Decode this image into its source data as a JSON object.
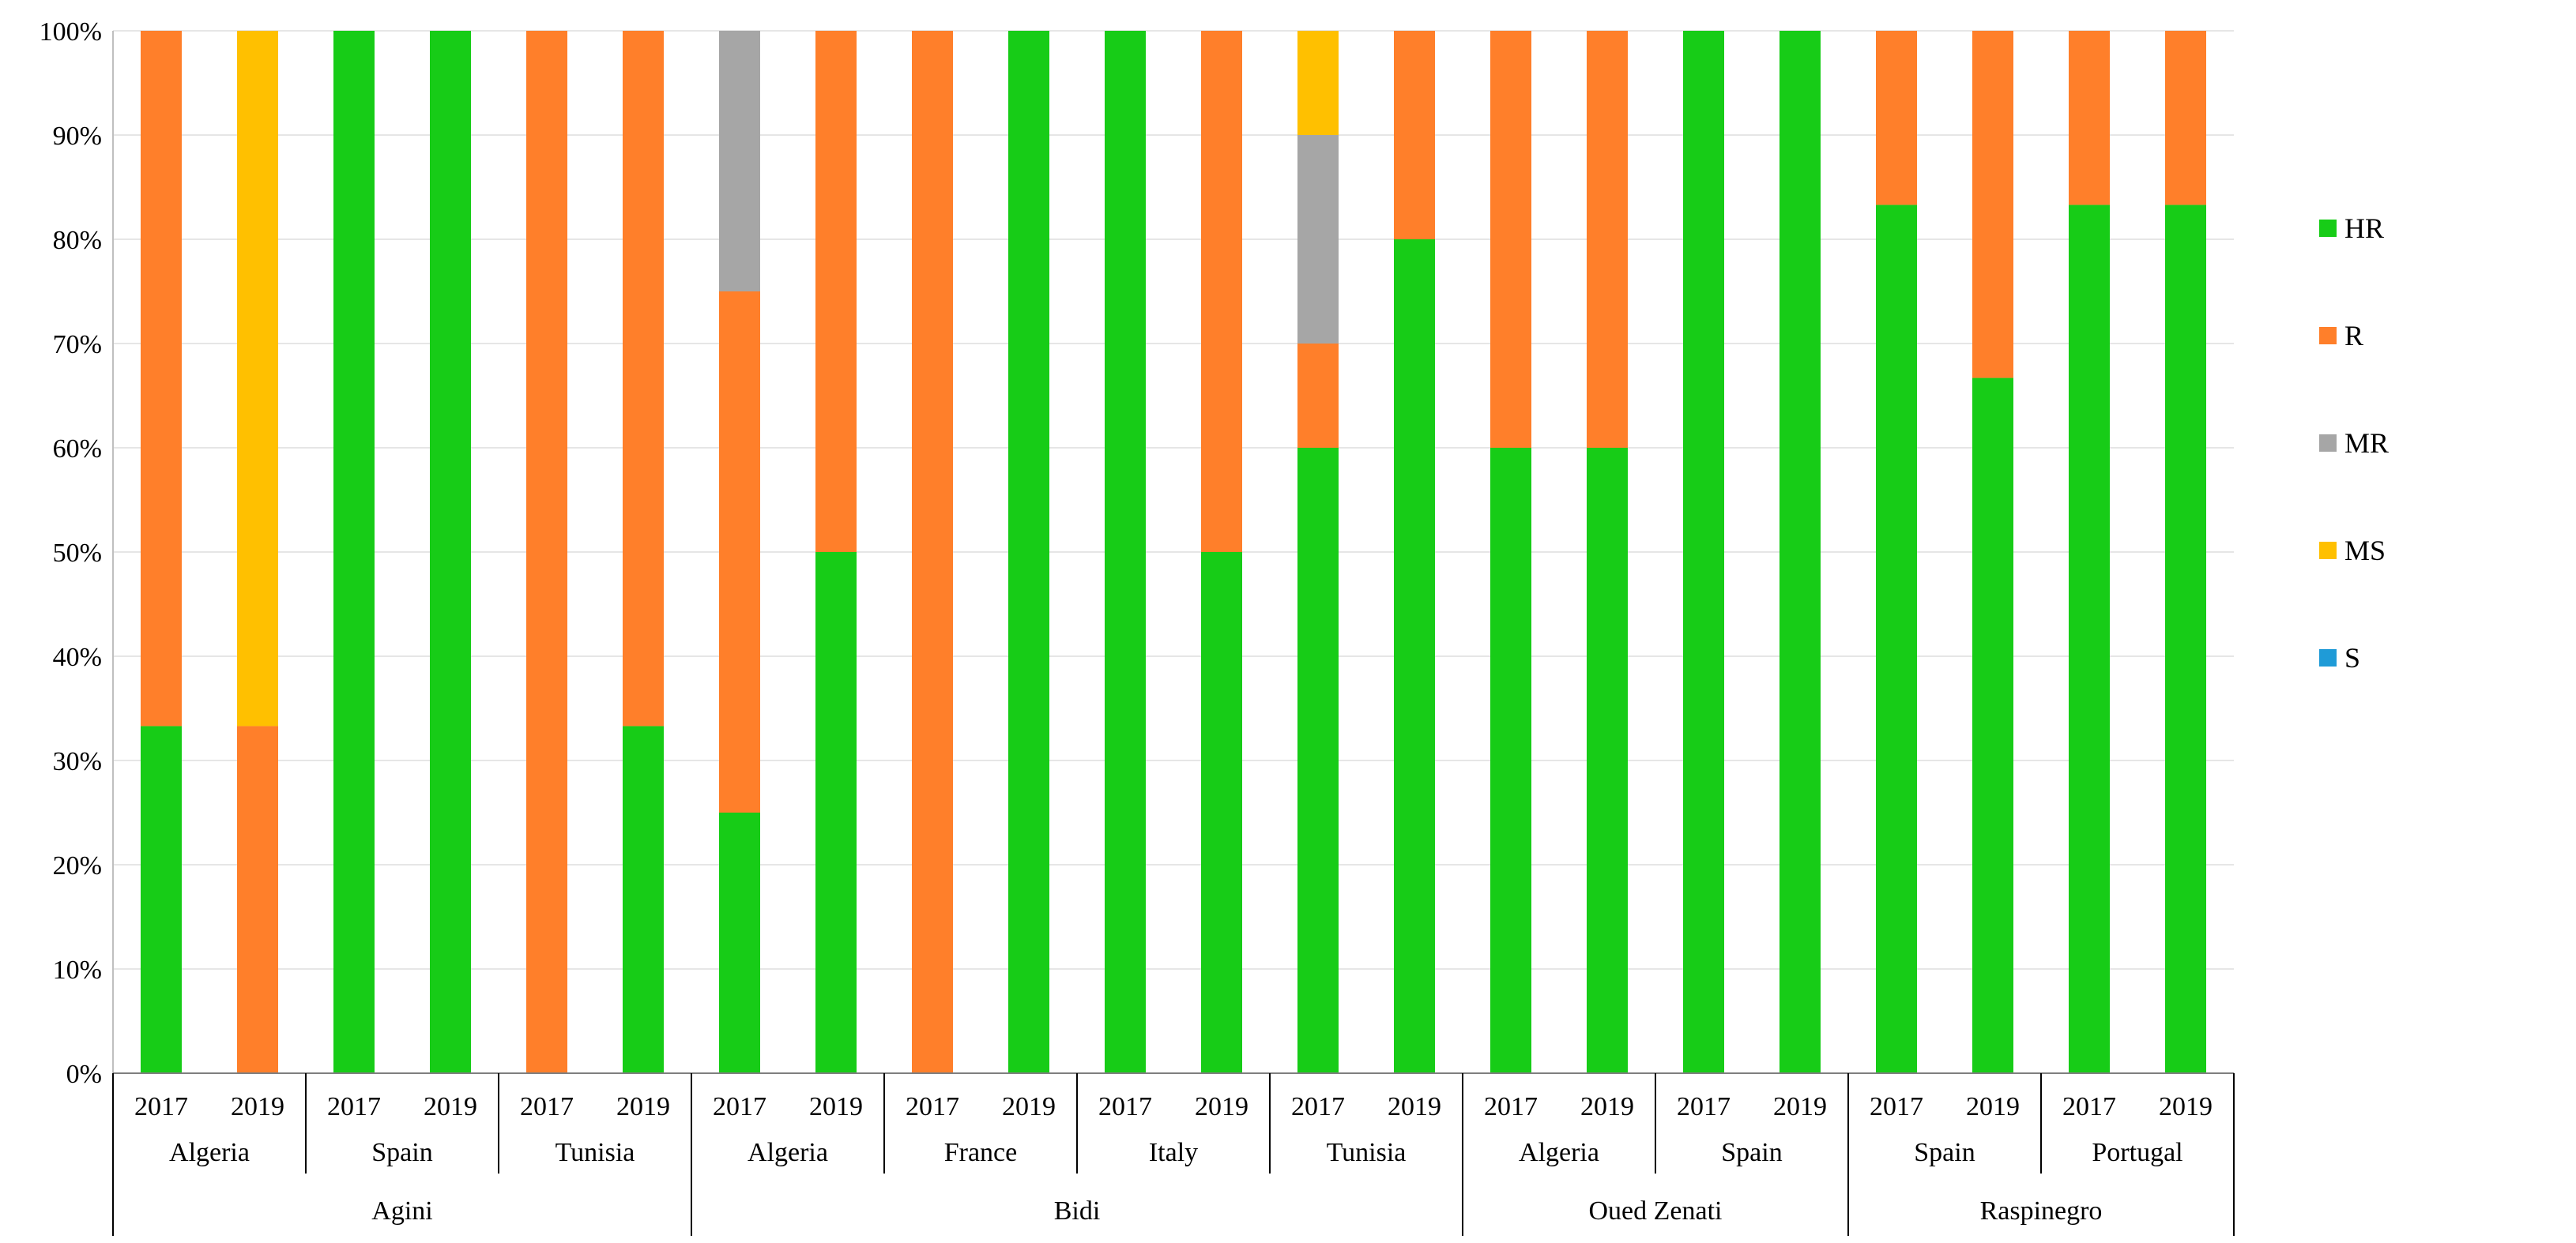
{
  "chart_data": {
    "type": "bar",
    "stacked": true,
    "percent": true,
    "title": "",
    "xlabel": "",
    "ylabel": "",
    "ylim": [
      0,
      100
    ],
    "yticks": [
      "0%",
      "10%",
      "20%",
      "30%",
      "40%",
      "50%",
      "60%",
      "70%",
      "80%",
      "90%",
      "100%"
    ],
    "grid": true,
    "legend_position": "right",
    "colors": {
      "HR": "#17cc17",
      "R": "#ff7f2a",
      "MR": "#a6a6a6",
      "MS": "#ffc000",
      "S": "#1f9bd7"
    },
    "legend": [
      "HR",
      "R",
      "MR",
      "MS",
      "S"
    ],
    "groups": [
      {
        "name": "Agini",
        "countries": [
          {
            "name": "Algeria",
            "years": [
              {
                "year": "2017",
                "HR": 33.3,
                "R": 66.7,
                "MR": 0,
                "MS": 0,
                "S": 0
              },
              {
                "year": "2019",
                "HR": 0,
                "R": 33.3,
                "MR": 0,
                "MS": 66.7,
                "S": 0
              }
            ]
          },
          {
            "name": "Spain",
            "years": [
              {
                "year": "2017",
                "HR": 100,
                "R": 0,
                "MR": 0,
                "MS": 0,
                "S": 0
              },
              {
                "year": "2019",
                "HR": 100,
                "R": 0,
                "MR": 0,
                "MS": 0,
                "S": 0
              }
            ]
          },
          {
            "name": "Tunisia",
            "years": [
              {
                "year": "2017",
                "HR": 0,
                "R": 100,
                "MR": 0,
                "MS": 0,
                "S": 0
              },
              {
                "year": "2019",
                "HR": 33.3,
                "R": 66.7,
                "MR": 0,
                "MS": 0,
                "S": 0
              }
            ]
          }
        ]
      },
      {
        "name": "Bidi",
        "countries": [
          {
            "name": "Algeria",
            "years": [
              {
                "year": "2017",
                "HR": 25,
                "R": 50,
                "MR": 25,
                "MS": 0,
                "S": 0
              },
              {
                "year": "2019",
                "HR": 50,
                "R": 50,
                "MR": 0,
                "MS": 0,
                "S": 0
              }
            ]
          },
          {
            "name": "France",
            "years": [
              {
                "year": "2017",
                "HR": 0,
                "R": 100,
                "MR": 0,
                "MS": 0,
                "S": 0
              },
              {
                "year": "2019",
                "HR": 100,
                "R": 0,
                "MR": 0,
                "MS": 0,
                "S": 0
              }
            ]
          },
          {
            "name": "Italy",
            "years": [
              {
                "year": "2017",
                "HR": 100,
                "R": 0,
                "MR": 0,
                "MS": 0,
                "S": 0
              },
              {
                "year": "2019",
                "HR": 50,
                "R": 50,
                "MR": 0,
                "MS": 0,
                "S": 0
              }
            ]
          },
          {
            "name": "Tunisia",
            "years": [
              {
                "year": "2017",
                "HR": 60,
                "R": 10,
                "MR": 20,
                "MS": 10,
                "S": 0
              },
              {
                "year": "2019",
                "HR": 80,
                "R": 20,
                "MR": 0,
                "MS": 0,
                "S": 0
              }
            ]
          }
        ]
      },
      {
        "name": "Oued Zenati",
        "countries": [
          {
            "name": "Algeria",
            "years": [
              {
                "year": "2017",
                "HR": 60,
                "R": 40,
                "MR": 0,
                "MS": 0,
                "S": 0
              },
              {
                "year": "2019",
                "HR": 60,
                "R": 40,
                "MR": 0,
                "MS": 0,
                "S": 0
              }
            ]
          },
          {
            "name": "Spain",
            "years": [
              {
                "year": "2017",
                "HR": 100,
                "R": 0,
                "MR": 0,
                "MS": 0,
                "S": 0
              },
              {
                "year": "2019",
                "HR": 100,
                "R": 0,
                "MR": 0,
                "MS": 0,
                "S": 0
              }
            ]
          }
        ]
      },
      {
        "name": "Raspinegro",
        "countries": [
          {
            "name": "Spain",
            "years": [
              {
                "year": "2017",
                "HR": 83.3,
                "R": 16.7,
                "MR": 0,
                "MS": 0,
                "S": 0
              },
              {
                "year": "2019",
                "HR": 66.7,
                "R": 33.3,
                "MR": 0,
                "MS": 0,
                "S": 0
              }
            ]
          },
          {
            "name": "Portugal",
            "years": [
              {
                "year": "2017",
                "HR": 83.3,
                "R": 16.7,
                "MR": 0,
                "MS": 0,
                "S": 0
              },
              {
                "year": "2019",
                "HR": 83.3,
                "R": 16.7,
                "MR": 0,
                "MS": 0,
                "S": 0
              }
            ]
          }
        ]
      }
    ]
  }
}
